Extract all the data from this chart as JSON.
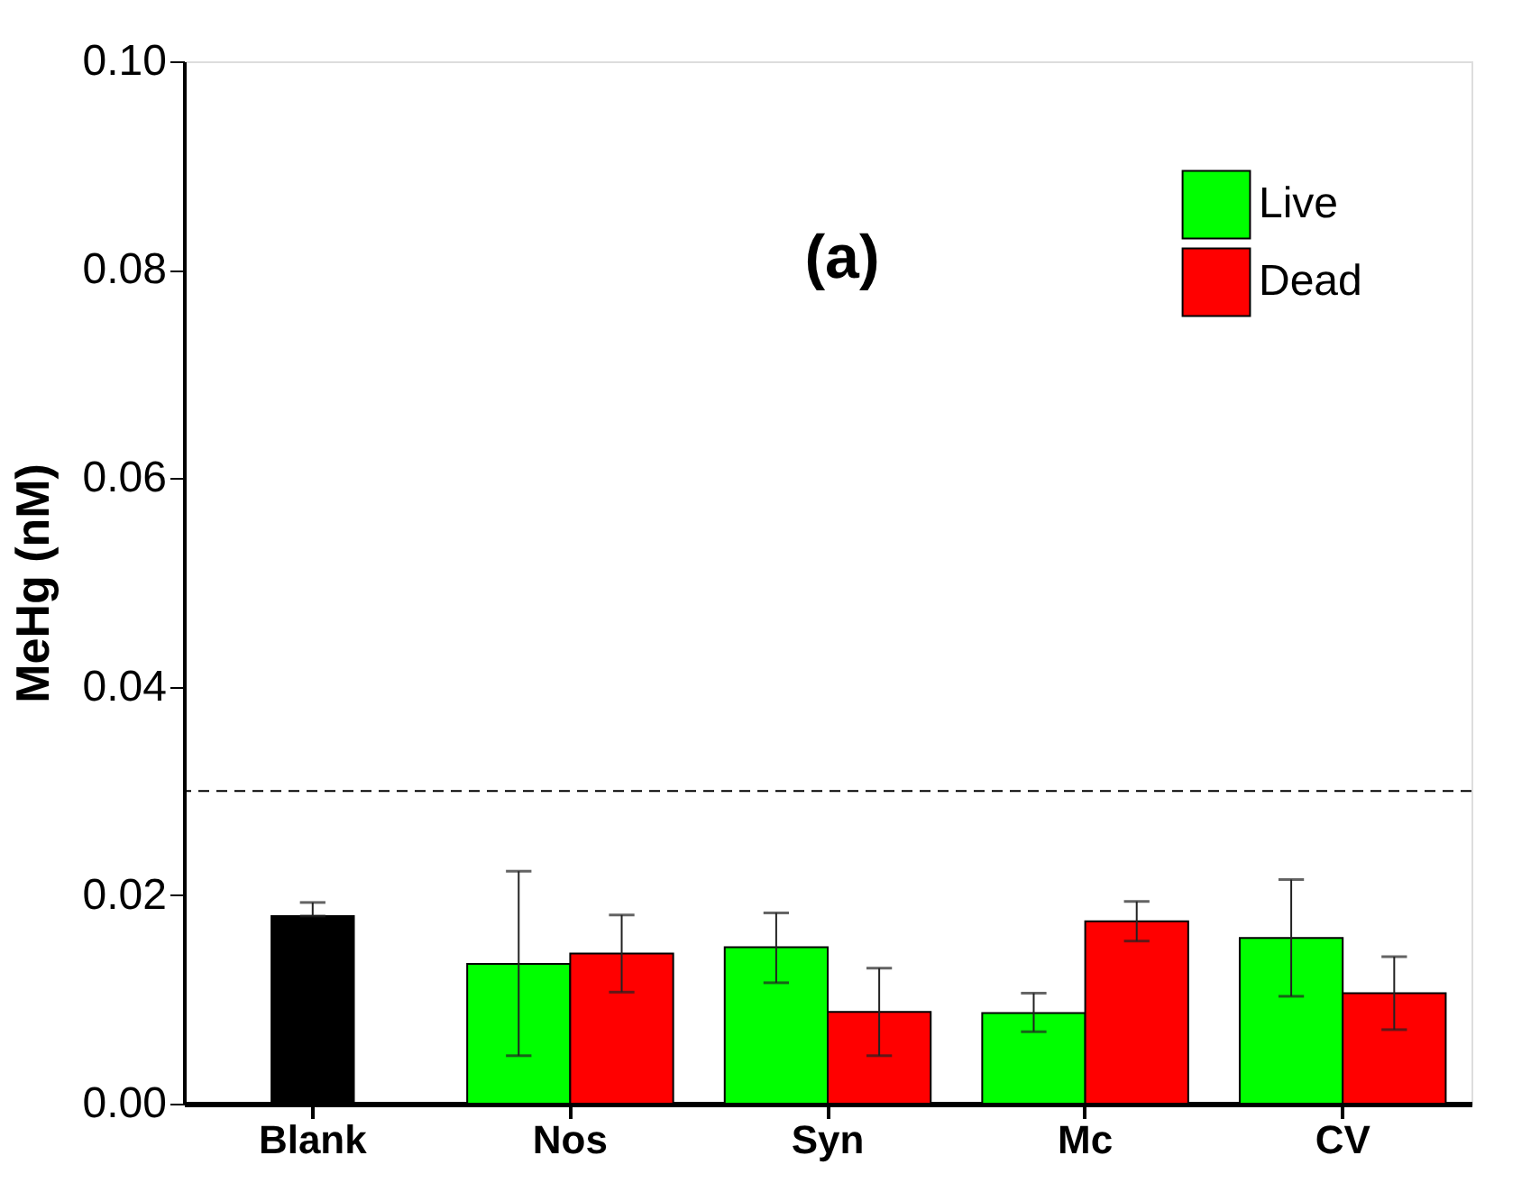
{
  "chart_data": {
    "type": "bar",
    "ylabel": "MeHg (nM)",
    "categories": [
      "Blank",
      "Nos",
      "Syn",
      "Mc",
      "CV"
    ],
    "series": [
      {
        "color": "#000000",
        "values": [
          0.018,
          null,
          null,
          null,
          null
        ],
        "errors": [
          [
            0.018,
            0.0193
          ],
          null,
          null,
          null,
          null
        ]
      },
      {
        "name": "Live",
        "color": "#00ff00",
        "values": [
          null,
          0.0134,
          0.015,
          0.0087,
          0.0159
        ],
        "errors": [
          null,
          [
            0.0046,
            0.0223
          ],
          [
            0.0116,
            0.0183
          ],
          [
            0.0069,
            0.0106
          ],
          [
            0.0103,
            0.0215
          ]
        ]
      },
      {
        "name": "Dead",
        "color": "#ff0000",
        "values": [
          null,
          0.0144,
          0.0088,
          0.0175,
          0.0106
        ],
        "errors": [
          null,
          [
            0.0107,
            0.0181
          ],
          [
            0.0046,
            0.013
          ],
          [
            0.0156,
            0.0194
          ],
          [
            0.0071,
            0.0141
          ]
        ]
      }
    ],
    "ylim": [
      0,
      0.1
    ],
    "yticks": [
      {
        "value": 0,
        "label": "0.00"
      },
      {
        "value": 0.02,
        "label": "0.02"
      },
      {
        "value": 0.04,
        "label": "0.04"
      },
      {
        "value": 0.06,
        "label": "0.06"
      },
      {
        "value": 0.08,
        "label": "0.08"
      },
      {
        "value": 0.1,
        "label": "0.10"
      }
    ],
    "ref_lines": [
      {
        "axis": "y",
        "value": 0.03,
        "line_style": "dashed",
        "color": "#000000"
      }
    ],
    "annotations": [
      "(a)"
    ],
    "legend": "top right",
    "grid": false
  }
}
